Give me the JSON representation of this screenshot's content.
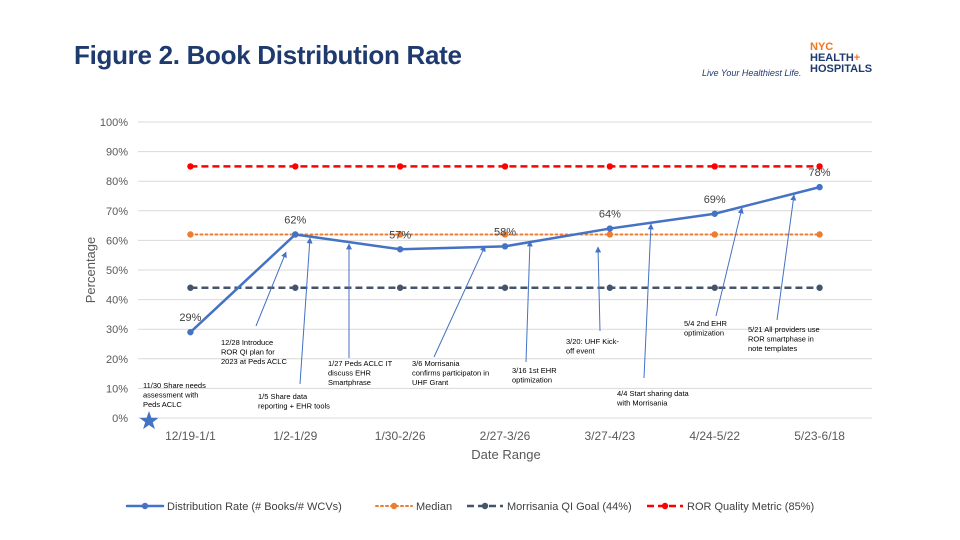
{
  "page": {
    "title": "Figure 2. Book Distribution Rate",
    "logo": {
      "tagline": "Live Your Healthiest Life.",
      "line1": "NYC",
      "line2": "HEALTH",
      "plus": "+",
      "line3": "HOSPITALS"
    }
  },
  "colors": {
    "distribution": "#4472c4",
    "median": "#ed7d31",
    "goal": "#44546a",
    "metric": "#ff0000",
    "grid": "#d9d9d9",
    "star": "#4472c4"
  },
  "chart_data": {
    "type": "line",
    "xlabel": "Date Range",
    "ylabel": "Percentage",
    "ylim": [
      0,
      100
    ],
    "y_ticks": [
      "0%",
      "10%",
      "20%",
      "30%",
      "40%",
      "50%",
      "60%",
      "70%",
      "80%",
      "90%",
      "100%"
    ],
    "categories": [
      "12/19-1/1",
      "1/2-1/29",
      "1/30-2/26",
      "2/27-3/26",
      "3/27-4/23",
      "4/24-5/22",
      "5/23-6/18"
    ],
    "grid": true,
    "legend_position": "bottom",
    "series": [
      {
        "name": "Distribution Rate (# Books/# WCVs)",
        "values": [
          29,
          62,
          57,
          58,
          64,
          69,
          78
        ],
        "labels": [
          "29%",
          "62%",
          "57%",
          "58%",
          "64%",
          "69%",
          "78%"
        ],
        "style": "solid"
      },
      {
        "name": "Median",
        "values": [
          62,
          62,
          62,
          62,
          62,
          62,
          62
        ],
        "style": "dotted"
      },
      {
        "name": "Morrisania QI Goal (44%)",
        "values": [
          44,
          44,
          44,
          44,
          44,
          44,
          44
        ],
        "style": "dashed"
      },
      {
        "name": "ROR Quality Metric  (85%)",
        "values": [
          85,
          85,
          85,
          85,
          85,
          85,
          85
        ],
        "style": "dashed"
      }
    ],
    "annotations": [
      {
        "lines": [
          "11/30 Share needs",
          "assessment with",
          "Peds ACLC"
        ]
      },
      {
        "lines": [
          "12/28 Introduce",
          "ROR QI plan for",
          "2023 at Peds ACLC"
        ]
      },
      {
        "lines": [
          "1/5 Share data",
          "reporting + EHR tools"
        ]
      },
      {
        "lines": [
          "1/27 Peds ACLC IT",
          "discuss EHR",
          "Smartphrase"
        ]
      },
      {
        "lines": [
          "3/6 Morrisania",
          "confirms participaton in",
          "UHF Grant"
        ]
      },
      {
        "lines": [
          "3/16 1st EHR",
          "optimization"
        ]
      },
      {
        "lines": [
          "3/20: UHF Kick-",
          "off event"
        ]
      },
      {
        "lines": [
          "4/4 Start sharing data",
          "with Morrisania"
        ]
      },
      {
        "lines": [
          "5/4 2nd EHR",
          "optimization"
        ]
      },
      {
        "lines": [
          "5/21 All providers use",
          "ROR smartphase in",
          "note templates"
        ]
      }
    ]
  }
}
